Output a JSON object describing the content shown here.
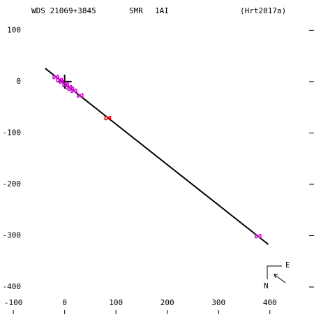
{
  "chart_data": {
    "type": "scatter",
    "header": {
      "star": "WDS 21069+3845",
      "observer": "SMR",
      "code": "1AI",
      "reference": "(Hrt2017a)"
    },
    "compass": {
      "east": "E",
      "north": "N"
    },
    "xlim": [
      -126,
      486
    ],
    "ylim": [
      -453,
      159
    ],
    "xticks": [
      -100,
      0,
      100,
      200,
      300,
      400
    ],
    "yticks": [
      100,
      0,
      -100,
      -200,
      -300,
      -400
    ],
    "line": {
      "x": [
        -38,
        397
      ],
      "values": [
        26,
        -317
      ],
      "color": "#000000"
    },
    "point_sets": [
      {
        "color": "#cc00cc",
        "x": [
          -17,
          -10,
          -4,
          2,
          8,
          12,
          18,
          30,
          377
        ],
        "values": [
          9,
          3,
          0,
          -6,
          -11,
          -14,
          -18,
          -27,
          -301
        ]
      },
      {
        "color": "#cc0000",
        "x": [
          84
        ],
        "values": [
          -71
        ]
      }
    ]
  }
}
